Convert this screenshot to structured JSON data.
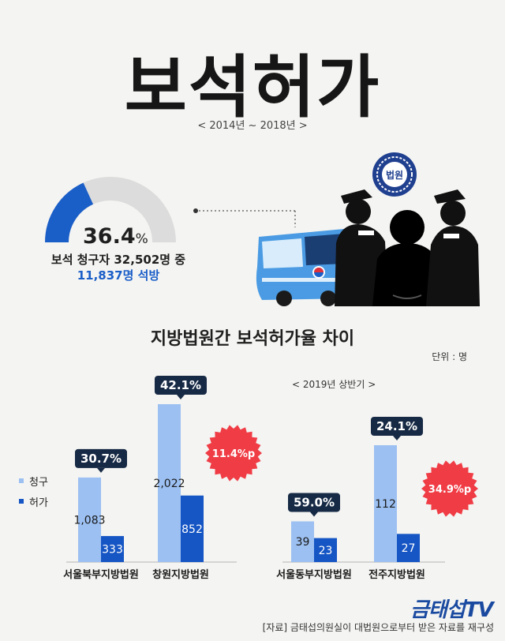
{
  "header": {
    "title": "보석허가",
    "period": "< 2014년 ~ 2018년 >"
  },
  "gauge": {
    "percent": 36.4,
    "percent_text": "36.4",
    "unit": "%",
    "line1": "보석 청구자 32,502명 중",
    "line2": "11,837명 석방",
    "colors": {
      "fill": "#1a5ec8",
      "track": "#dcdcdc"
    }
  },
  "illustration": {
    "court_seal_label": "법원",
    "icons": [
      "court-seal-icon",
      "bus-icon",
      "guard-icon",
      "prisoner-icon"
    ]
  },
  "chart_data": {
    "type": "bar",
    "title": "지방법원간 보석허가율 차이",
    "unit_label": "단위 : 명",
    "series": [
      {
        "name": "청구",
        "color": "#9cc0f2"
      },
      {
        "name": "허가",
        "color": "#1555c4"
      }
    ],
    "groups": [
      {
        "panel": "< 2014년 ~ 2018년 >",
        "categories": [
          {
            "name": "서울북부지방법원",
            "values": [
              1083,
              333
            ],
            "labels": [
              "1,083",
              "333"
            ],
            "rate": "30.7%"
          },
          {
            "name": "창원지방법원",
            "values": [
              2022,
              852
            ],
            "labels": [
              "2,022",
              "852"
            ],
            "rate": "42.1%"
          }
        ],
        "difference": "11.4%p"
      },
      {
        "panel": "< 2019년 상반기 >",
        "categories": [
          {
            "name": "서울동부지방법원",
            "values": [
              39,
              23
            ],
            "labels": [
              "39",
              "23"
            ],
            "rate": "59.0%"
          },
          {
            "name": "전주지방법원",
            "values": [
              112,
              27
            ],
            "labels": [
              "112",
              "27"
            ],
            "rate": "24.1%"
          }
        ],
        "difference": "34.9%p"
      }
    ],
    "colors": {
      "bubble": "#172a45",
      "burst": "#f03c45",
      "baseline": "#c9c9c9"
    }
  },
  "footer": {
    "brand": "금태섭TV",
    "source": "[자료] 금태섭의원실이 대법원으로부터 받은 자료를 재구성"
  }
}
